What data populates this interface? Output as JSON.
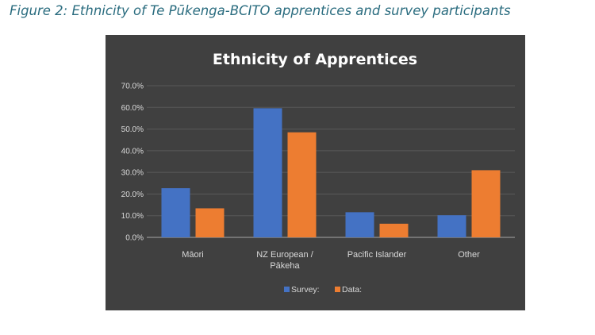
{
  "caption": "Figure 2: Ethnicity of Te Pūkenga-BCITO apprentices and survey participants",
  "colors": {
    "survey": "#4472c4",
    "data": "#ed7d31",
    "background": "#404040",
    "grid": "#595959"
  },
  "chart_data": {
    "type": "bar",
    "title": "Ethnicity of Apprentices",
    "xlabel": "",
    "ylabel": "",
    "categories": [
      [
        "Māori"
      ],
      [
        "NZ European /",
        "Pākeha"
      ],
      [
        "Pacific Islander"
      ],
      [
        "Other"
      ]
    ],
    "series": [
      {
        "name": "Survey:",
        "values": [
          22.7,
          59.6,
          11.6,
          10.2
        ]
      },
      {
        "name": "Data:",
        "values": [
          13.4,
          48.5,
          6.3,
          31.0
        ]
      }
    ],
    "ylim": [
      0,
      70
    ],
    "yticks": [
      "0.0%",
      "10.0%",
      "20.0%",
      "30.0%",
      "40.0%",
      "50.0%",
      "60.0%",
      "70.0%"
    ],
    "grid": true,
    "legend_position": "bottom"
  }
}
